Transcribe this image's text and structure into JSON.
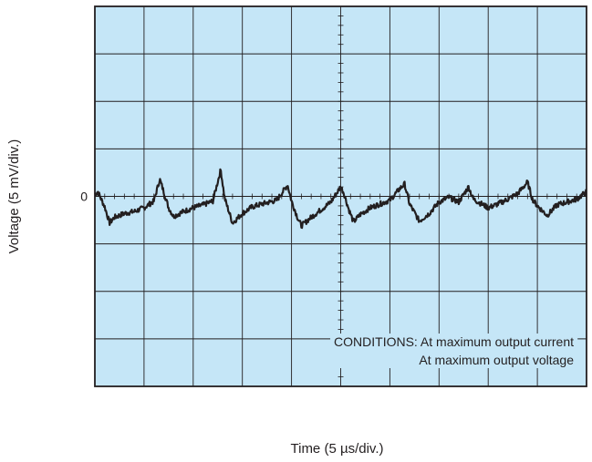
{
  "chart_data": {
    "type": "line",
    "title": "",
    "xlabel": "Time (5 µs/div.)",
    "ylabel": "Voltage (5 mV/div.)",
    "x_unit": "µs",
    "y_unit": "mV",
    "xlim": [
      0,
      50
    ],
    "ylim": [
      -20,
      20
    ],
    "x_per_div": 5,
    "y_per_div": 5,
    "y_tick_labels": [
      {
        "value": 0,
        "label": "0"
      }
    ],
    "grid": true,
    "legend": "none",
    "annotation": {
      "lines": [
        "CONDITIONS: At maximum output current",
        "At maximum output voltage"
      ],
      "position": "bottom-right"
    },
    "colors": {
      "background": "#c5e6f7",
      "grid": "#231f20",
      "trace": "#231f20"
    },
    "series": [
      {
        "x": [
          0,
          0.3,
          1,
          1.5,
          2,
          3,
          4,
          5,
          6,
          6.6,
          7,
          7.5,
          8,
          9,
          10,
          11,
          12,
          12.8,
          13.2,
          13.6,
          14,
          15,
          16,
          17,
          18.5,
          19.6,
          20,
          20.6,
          21,
          22,
          23,
          24,
          25,
          25.3,
          25.8,
          26.3,
          27,
          28,
          29,
          30,
          31,
          31.5,
          32,
          33,
          34,
          35,
          36,
          37,
          38,
          38.5,
          39,
          40,
          41,
          42,
          43,
          44,
          44.5,
          45,
          46,
          47,
          48,
          49,
          50
        ],
        "y": [
          0.2,
          0.5,
          -1.1,
          -2.8,
          -2.2,
          -1.8,
          -1.6,
          -1.2,
          -0.5,
          1.8,
          0.5,
          -1.2,
          -2.1,
          -1.6,
          -1.2,
          -0.9,
          -0.5,
          2.8,
          -0.2,
          -1.5,
          -2.8,
          -1.8,
          -1.1,
          -0.8,
          -0.4,
          1.2,
          -0.5,
          -2.2,
          -3.1,
          -2.2,
          -1.4,
          -0.6,
          1.0,
          0.4,
          -1.3,
          -2.7,
          -1.9,
          -1.2,
          -0.8,
          -0.4,
          0.8,
          1.3,
          -0.8,
          -2.6,
          -1.8,
          -0.6,
          -0.1,
          -0.6,
          1.0,
          -0.3,
          -0.6,
          -1.2,
          -0.8,
          -0.3,
          0.3,
          1.5,
          -0.3,
          -1.0,
          -2.0,
          -0.9,
          -0.6,
          -0.3,
          0.5
        ]
      }
    ]
  }
}
